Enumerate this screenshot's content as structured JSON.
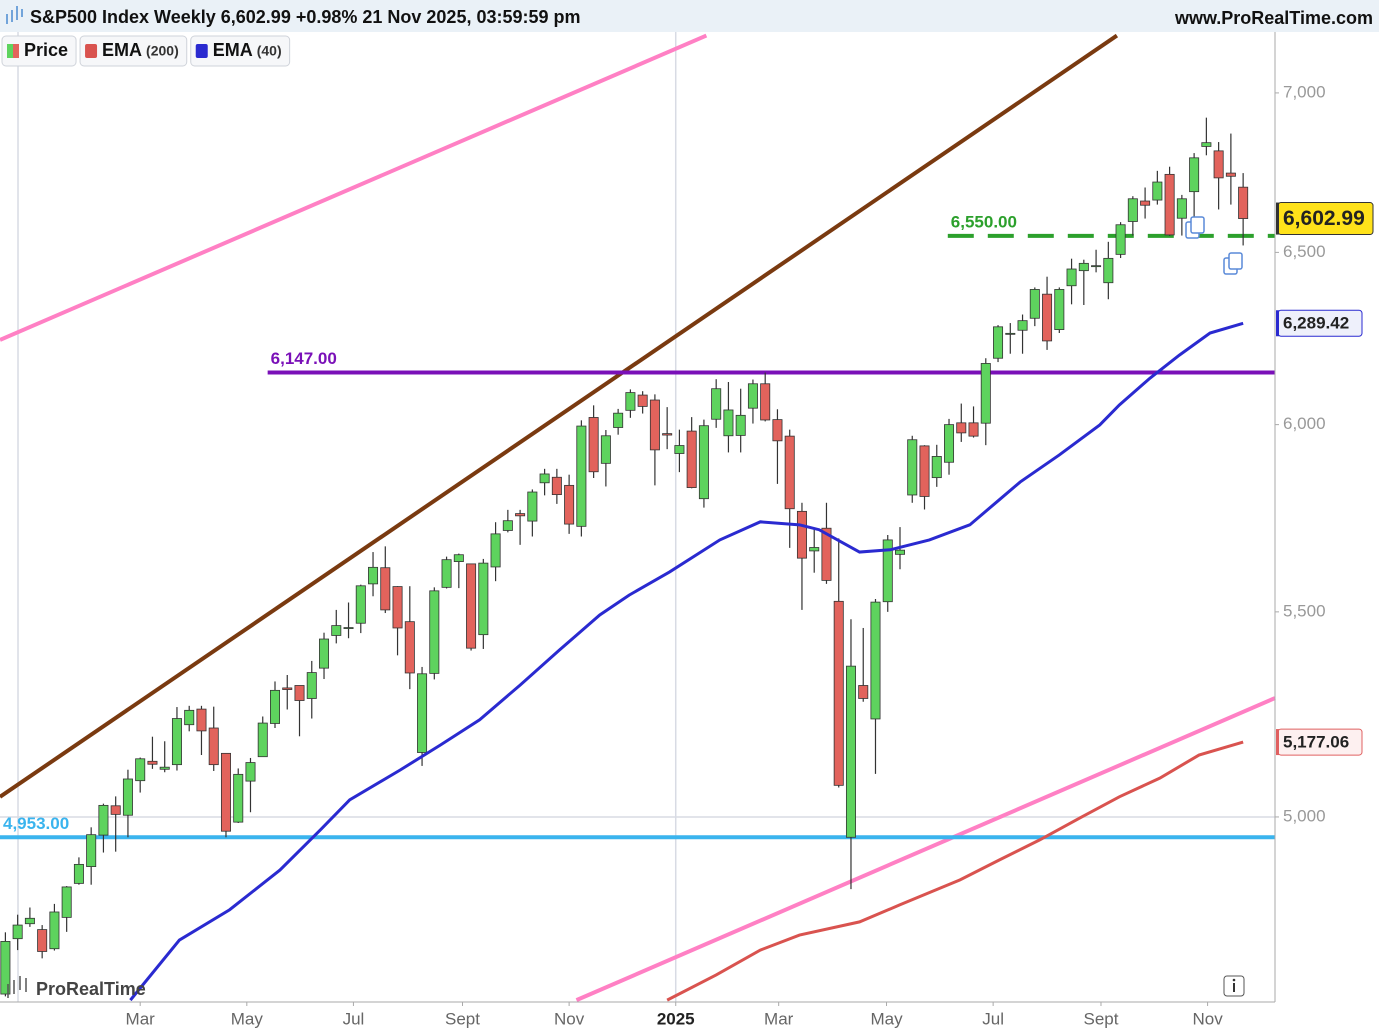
{
  "chart_data": {
    "type": "candlestick",
    "title": "S&P500 Index Weekly 6,602.99 +0.98% 21 Nov 2025, 03:59:59 pm",
    "source": "www.ProRealTime.com",
    "watermark": "ProRealTime",
    "log_scale": true,
    "xlim": [
      -0.44,
      103.6
    ],
    "ylim": [
      4588,
      7201
    ],
    "yticks": [
      {
        "value": 5000,
        "label": "5,000"
      },
      {
        "value": 5500,
        "label": "5,500"
      },
      {
        "value": 6000,
        "label": "6,000"
      },
      {
        "value": 6500,
        "label": "6,500"
      },
      {
        "value": 7000,
        "label": "7,000"
      }
    ],
    "xticks": [
      {
        "value": 11.0,
        "label": "Mar"
      },
      {
        "value": 19.7,
        "label": "May"
      },
      {
        "value": 28.4,
        "label": "Jul"
      },
      {
        "value": 37.3,
        "label": "Sept"
      },
      {
        "value": 46.0,
        "label": "Nov"
      },
      {
        "value": 54.7,
        "label": "2025"
      },
      {
        "value": 63.1,
        "label": "Mar"
      },
      {
        "value": 71.9,
        "label": "May"
      },
      {
        "value": 80.6,
        "label": "Jul"
      },
      {
        "value": 89.4,
        "label": "Sept"
      },
      {
        "value": 98.1,
        "label": "Nov"
      }
    ],
    "vgrid": [
      1.03,
      54.7
    ],
    "hgrid": [
      5000
    ],
    "series": [
      {
        "name": "Price",
        "type": "candlestick",
        "up_color": "#5ed35e",
        "down_color": "#e2635c",
        "x": [
          0,
          1,
          2,
          3,
          4,
          5,
          6,
          7,
          8,
          9,
          10,
          11,
          12,
          13,
          14,
          15,
          16,
          17,
          18,
          19,
          20,
          21,
          22,
          23,
          24,
          25,
          26,
          27,
          28,
          29,
          30,
          31,
          32,
          33,
          34,
          35,
          36,
          37,
          38,
          39,
          40,
          41,
          42,
          43,
          44,
          45,
          46,
          47,
          48,
          49,
          50,
          51,
          52,
          53,
          54,
          55,
          56,
          57,
          58,
          59,
          60,
          61,
          62,
          63,
          64,
          65,
          66,
          67,
          68,
          69,
          70,
          71,
          72,
          73,
          74,
          75,
          76,
          77,
          78,
          79,
          80,
          81,
          82,
          83,
          84,
          85,
          86,
          87,
          88,
          89,
          90,
          91,
          92,
          93,
          94,
          95,
          96,
          97,
          98,
          99,
          100,
          101
        ],
        "open": [
          4605,
          4725,
          4758,
          4745,
          4703,
          4772,
          4848,
          4886,
          4958,
          5026,
          5004,
          5085,
          5131,
          5112,
          5123,
          5219,
          5257,
          5211,
          5150,
          4988,
          5084,
          5142,
          5222,
          5309,
          5315,
          5283,
          5358,
          5440,
          5459,
          5471,
          5572,
          5614,
          5565,
          5475,
          5152,
          5345,
          5563,
          5630,
          5624,
          5442,
          5616,
          5712,
          5757,
          5737,
          5840,
          5855,
          5833,
          5723,
          6020,
          5893,
          5992,
          6040,
          6083,
          6069,
          5975,
          5920,
          5982,
          5797,
          6015,
          5969,
          5970,
          6046,
          6115,
          6014,
          5968,
          5763,
          5658,
          5718,
          5527,
          4953,
          5315,
          5233,
          5526,
          5649,
          5807,
          5941,
          5854,
          5896,
          6005,
          6005,
          6004,
          6188,
          6259,
          6269,
          6304,
          6375,
          6271,
          6400,
          6445,
          6457,
          6409,
          6494,
          6594,
          6657,
          6660,
          6740,
          6604,
          6686,
          6828,
          6814,
          6744,
          6700
        ],
        "high": [
          4739,
          4778,
          4794,
          4755,
          4802,
          4842,
          4907,
          4976,
          5031,
          5048,
          5111,
          5140,
          5190,
          5179,
          5262,
          5265,
          5265,
          5263,
          5150,
          5114,
          5139,
          5239,
          5325,
          5341,
          5315,
          5376,
          5447,
          5505,
          5524,
          5570,
          5655,
          5670,
          5566,
          5566,
          5361,
          5563,
          5643,
          5651,
          5625,
          5637,
          5734,
          5767,
          5767,
          5822,
          5878,
          5878,
          5862,
          6012,
          6054,
          5985,
          6044,
          6099,
          6094,
          6085,
          6049,
          5986,
          6021,
          6014,
          6128,
          6120,
          6101,
          6127,
          6147,
          6043,
          5986,
          5786,
          5715,
          5786,
          5691,
          5481,
          5459,
          5533,
          5700,
          5721,
          5969,
          5943,
          5944,
          6016,
          6059,
          6051,
          6188,
          6284,
          6290,
          6315,
          6395,
          6427,
          6395,
          6481,
          6478,
          6508,
          6532,
          6592,
          6672,
          6699,
          6751,
          6764,
          6676,
          6807,
          6920,
          6842,
          6869,
          6744
        ],
        "low": [
          4600,
          4700,
          4751,
          4682,
          4699,
          4740,
          4845,
          4845,
          4918,
          4920,
          4953,
          5057,
          5113,
          5105,
          5109,
          5203,
          5146,
          5108,
          4953,
          4986,
          5011,
          5142,
          5211,
          5256,
          5191,
          5234,
          5331,
          5420,
          5433,
          5446,
          5540,
          5497,
          5390,
          5306,
          5120,
          5330,
          5560,
          5561,
          5402,
          5406,
          5579,
          5707,
          5674,
          5696,
          5806,
          5783,
          5703,
          5696,
          5853,
          5830,
          5972,
          6019,
          6031,
          5833,
          5932,
          5869,
          5825,
          5773,
          5991,
          5923,
          5923,
          6003,
          6009,
          5837,
          5666,
          5505,
          5601,
          5572,
          5069,
          4835,
          5275,
          5101,
          5500,
          5610,
          5786,
          5768,
          5829,
          5862,
          5952,
          5964,
          5943,
          6177,
          6201,
          6201,
          6281,
          6212,
          6261,
          6345,
          6343,
          6440,
          6360,
          6483,
          6551,
          6603,
          6646,
          6550,
          6551,
          6602,
          6800,
          6631,
          6646,
          6521
        ],
        "close": [
          4719,
          4755,
          4770,
          4697,
          4784,
          4840,
          4891,
          4959,
          5027,
          5006,
          5089,
          5137,
          5124,
          5117,
          5234,
          5254,
          5204,
          5123,
          4967,
          5100,
          5128,
          5223,
          5303,
          5305,
          5278,
          5347,
          5431,
          5465,
          5460,
          5567,
          5615,
          5505,
          5459,
          5346,
          5344,
          5554,
          5635,
          5648,
          5408,
          5626,
          5703,
          5738,
          5751,
          5815,
          5864,
          5808,
          5729,
          5996,
          5870,
          5969,
          6032,
          6090,
          6051,
          5930,
          5971,
          5942,
          5827,
          5997,
          6101,
          6041,
          6026,
          6115,
          6013,
          5955,
          5770,
          5639,
          5667,
          5581,
          5074,
          5363,
          5283,
          5525,
          5687,
          5660,
          5958,
          5803,
          5912,
          6000,
          5977,
          5968,
          6173,
          6279,
          6260,
          6297,
          6389,
          6238,
          6389,
          6450,
          6467,
          6460,
          6482,
          6584,
          6664,
          6644,
          6716,
          6553,
          6664,
          6792,
          6840,
          6729,
          6734,
          6602.99
        ]
      },
      {
        "name": "EMA",
        "param": "(200)",
        "type": "line",
        "color": "#d9534f",
        "x": [
          54,
          58,
          61.6,
          64.8,
          69.7,
          73,
          77.9,
          81.1,
          84.4,
          87.7,
          90.9,
          94.2,
          97.4,
          101
        ],
        "values": [
          4592,
          4646,
          4700,
          4733,
          4762,
          4800,
          4856,
          4901,
          4947,
          4998,
          5047,
          5091,
          5146,
          5177.06
        ]
      },
      {
        "name": "EMA",
        "param": "(40)",
        "type": "line",
        "color": "#2a2ad0",
        "x": [
          10.2,
          14.2,
          18.3,
          22.4,
          25.7,
          28.1,
          32.2,
          35.5,
          38.7,
          42.0,
          45.2,
          48.5,
          50.9,
          54.2,
          58.3,
          61.6,
          64.8,
          66.4,
          69.7,
          72.2,
          75.4,
          78.7,
          81.1,
          82.8,
          86.0,
          89.3,
          90.9,
          93.4,
          95.8,
          98.3,
          101
        ],
        "values": [
          4592,
          4722,
          4789,
          4878,
          4970,
          5040,
          5110,
          5170,
          5231,
          5316,
          5403,
          5492,
          5543,
          5603,
          5687,
          5735,
          5727,
          5714,
          5655,
          5661,
          5687,
          5727,
          5794,
          5842,
          5916,
          5999,
          6055,
          6131,
          6197,
          6261,
          6289.42
        ]
      }
    ],
    "price_tags": [
      {
        "value": 6602.99,
        "label": "6,602.99",
        "color": "#333333",
        "fill": "#ffe21a"
      },
      {
        "value": 6289.42,
        "label": "6,289.42",
        "color": "#2a2ad0",
        "fill": "#eef0fb"
      },
      {
        "value": 5177.06,
        "label": "5,177.06",
        "color": "#e06060",
        "fill": "#fdf0f0"
      }
    ],
    "levels": [
      {
        "value": 6147,
        "label": "6,147.00",
        "color": "#7a10b8",
        "style": "solid",
        "x": [
          21.4,
          103.6
        ]
      },
      {
        "value": 6550,
        "label": "6,550.00",
        "color": "#2ca02c",
        "style": "dashed",
        "x": [
          76.9,
          103.6
        ]
      },
      {
        "value": 4953,
        "label": "4,953.00",
        "color": "#3ab4ee",
        "style": "solid",
        "x": [
          -0.44,
          103.6
        ]
      }
    ],
    "trendlines": [
      {
        "color": "#ff80c4",
        "x": [
          -0.44,
          57.2
        ],
        "values": [
          6241,
          7189
        ]
      },
      {
        "color": "#7a3a10",
        "x": [
          -0.44,
          90.7
        ],
        "values": [
          5047,
          7189
        ]
      },
      {
        "color": "#ff80c4",
        "x": [
          46.6,
          103.6
        ],
        "values": [
          4592,
          5284
        ]
      }
    ]
  }
}
